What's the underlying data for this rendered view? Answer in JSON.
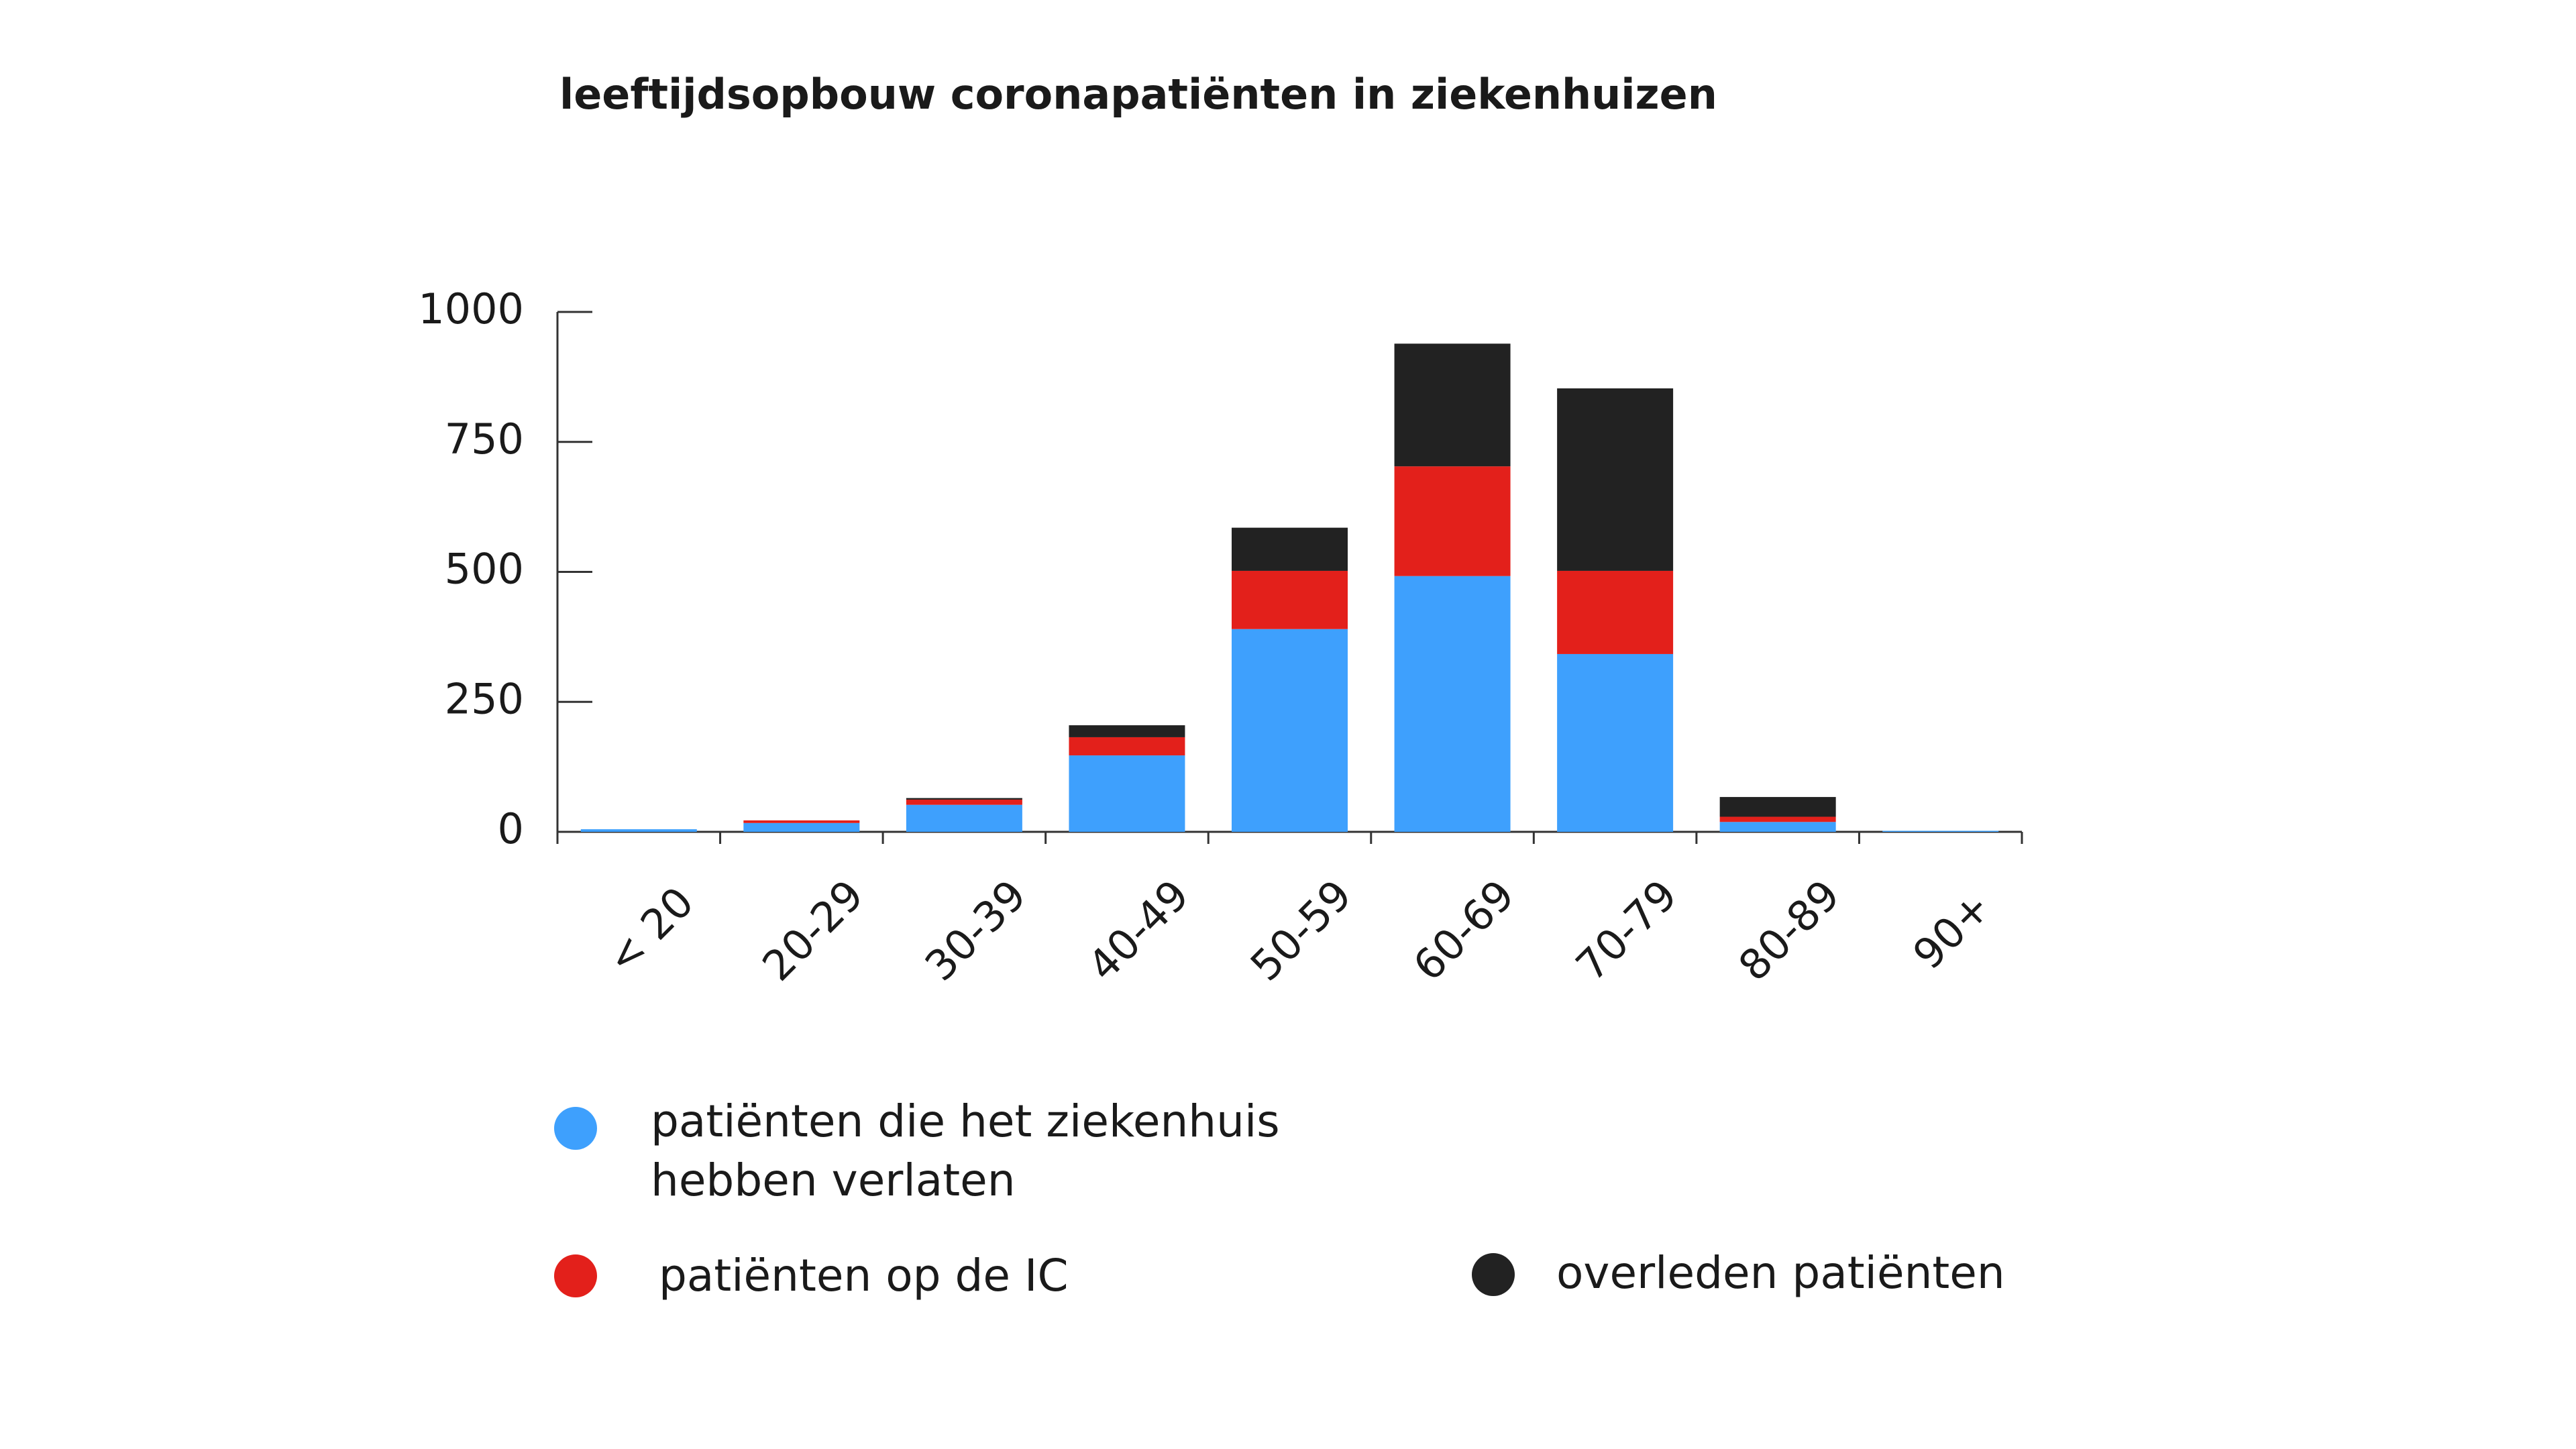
{
  "chart_data": {
    "type": "stacked_bar",
    "title": "leeftijdsopbouw coronapatiënten in ziekenhuizen",
    "categories": [
      "< 20",
      "20-29",
      "30-39",
      "40-49",
      "50-59",
      "60-69",
      "70-79",
      "80-89",
      "90+"
    ],
    "series": [
      {
        "name": "patiënten die het ziekenhuis hebben verlaten",
        "color": "#3ea0fd",
        "values": [
          5,
          17,
          52,
          147,
          390,
          492,
          342,
          19,
          2
        ]
      },
      {
        "name": "patiënten op de IC",
        "color": "#e3201b",
        "values": [
          0,
          5,
          10,
          35,
          112,
          211,
          160,
          10,
          0
        ]
      },
      {
        "name": "overleden patiënten",
        "color": "#222222",
        "values": [
          0,
          0,
          3,
          23,
          83,
          236,
          351,
          38,
          0
        ]
      }
    ],
    "ylim": [
      0,
      1000
    ],
    "yticks": [
      0,
      250,
      500,
      750,
      1000
    ],
    "grid": false
  }
}
